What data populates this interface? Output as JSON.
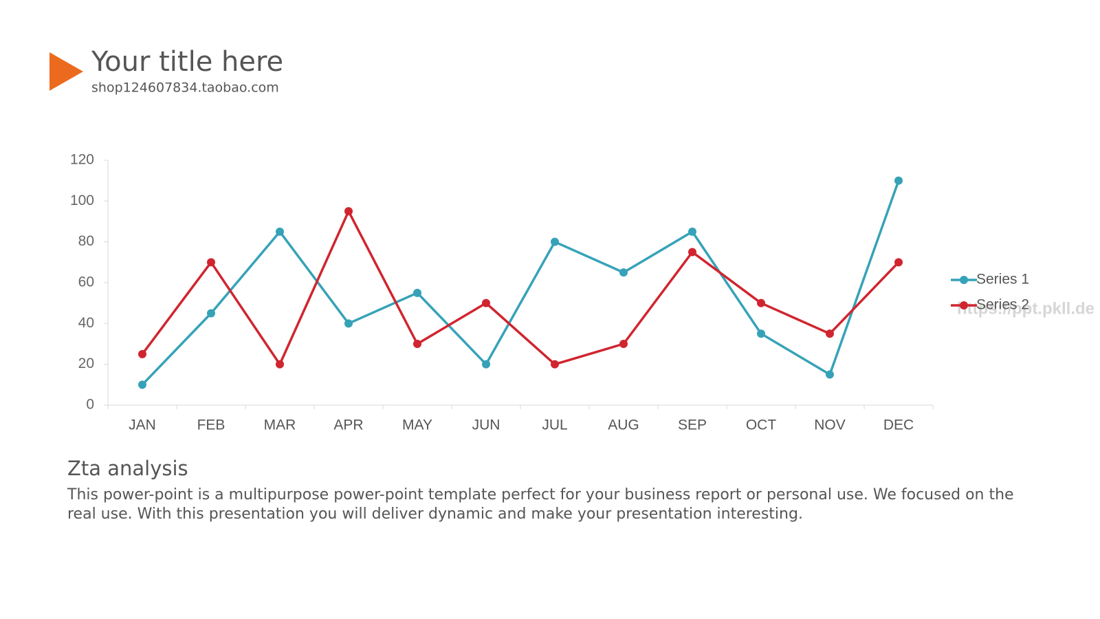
{
  "header": {
    "title": "Your title here",
    "subtitle": "shop124607834.taobao.com"
  },
  "chart_data": {
    "type": "line",
    "categories": [
      "JAN",
      "FEB",
      "MAR",
      "APR",
      "MAY",
      "JUN",
      "JUL",
      "AUG",
      "SEP",
      "OCT",
      "NOV",
      "DEC"
    ],
    "series": [
      {
        "name": "Series 1",
        "color": "#36a2b8",
        "values": [
          10,
          45,
          85,
          40,
          55,
          20,
          80,
          65,
          85,
          35,
          15,
          110
        ]
      },
      {
        "name": "Series 2",
        "color": "#d0252f",
        "values": [
          25,
          70,
          20,
          95,
          30,
          50,
          20,
          30,
          75,
          50,
          35,
          70
        ]
      }
    ],
    "ylim": [
      0,
      120
    ],
    "yticks": [
      0,
      20,
      40,
      60,
      80,
      100,
      120
    ],
    "grid": false,
    "legend": "right",
    "watermark": "https://ppt.pkll.de"
  },
  "analysis": {
    "heading": "Zta analysis",
    "body": "This power-point is a multipurpose power-point template perfect for your business report or personal use. We focused on the real use. With this presentation you will deliver dynamic and make your presentation interesting."
  }
}
